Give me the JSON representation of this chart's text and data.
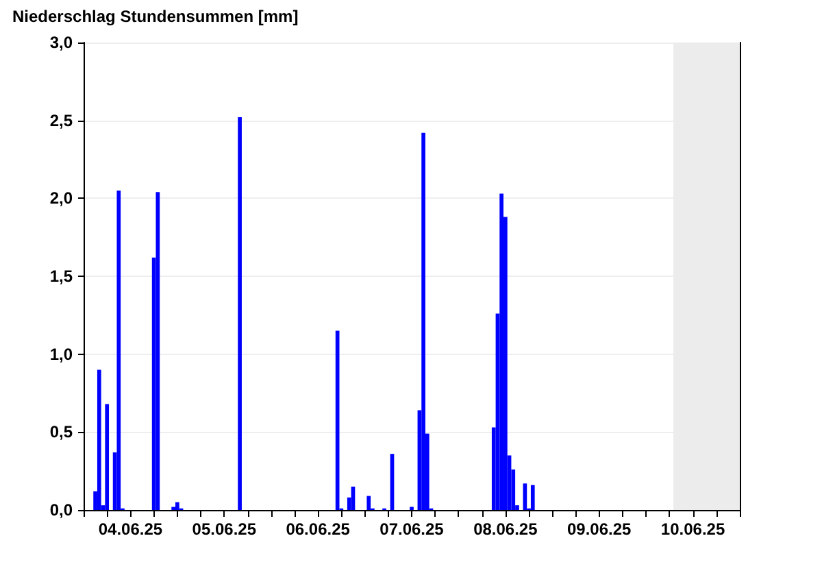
{
  "chart_data": {
    "type": "bar",
    "title": "Niederschlag Stundensummen [mm]",
    "x": [
      "--06-04T03:00",
      "--06-04T04:00",
      "--06-04T05:00",
      "--06-04T06:00",
      "--06-04T08:00",
      "--06-04T09:00",
      "--06-04T10:00",
      "--06-04T18:00",
      "--06-04T19:00",
      "--06-04T23:00",
      "--06-05T00:00",
      "--06-05T01:00",
      "--06-05T16:00",
      "--06-06T17:00",
      "--06-06T18:00",
      "--06-06T20:00",
      "--06-06T21:00",
      "--06-07T01:00",
      "--06-07T02:00",
      "--06-07T05:00",
      "--06-07T07:00",
      "--06-07T12:00",
      "--06-07T14:00",
      "--06-07T15:00",
      "--06-07T16:00",
      "--06-07T17:00",
      "--06-08T09:00",
      "--06-08T10:00",
      "--06-08T11:00",
      "--06-08T12:00",
      "--06-08T13:00",
      "--06-08T14:00",
      "--06-08T15:00",
      "--06-08T17:00",
      "--06-08T18:00",
      "--06-08T19:00"
    ],
    "values": [
      0.12,
      0.9,
      0.03,
      0.68,
      0.37,
      2.05,
      0.01,
      1.62,
      2.04,
      0.02,
      0.05,
      0.01,
      2.52,
      1.15,
      0.01,
      0.08,
      0.15,
      0.09,
      0.01,
      0.01,
      0.36,
      0.02,
      0.64,
      2.42,
      0.49,
      0.01,
      0.53,
      1.26,
      2.03,
      1.88,
      0.35,
      0.26,
      0.03,
      0.17,
      0.01,
      0.16
    ],
    "color": "#0000ff",
    "xlim": [
      "--06-04T00:00",
      "--06-11T00:00"
    ],
    "xticks": [
      {
        "value": "--06-04T00:00",
        "label": null
      },
      {
        "value": "--06-04T06:00",
        "label": null
      },
      {
        "value": "--06-04T12:00",
        "label": "04.06.25"
      },
      {
        "value": "--06-04T18:00",
        "label": null
      },
      {
        "value": "--06-05T00:00",
        "label": null
      },
      {
        "value": "--06-05T06:00",
        "label": null
      },
      {
        "value": "--06-05T12:00",
        "label": "05.06.25"
      },
      {
        "value": "--06-05T18:00",
        "label": null
      },
      {
        "value": "--06-06T00:00",
        "label": null
      },
      {
        "value": "--06-06T06:00",
        "label": null
      },
      {
        "value": "--06-06T12:00",
        "label": "06.06.25"
      },
      {
        "value": "--06-06T18:00",
        "label": null
      },
      {
        "value": "--06-07T00:00",
        "label": null
      },
      {
        "value": "--06-07T06:00",
        "label": null
      },
      {
        "value": "--06-07T12:00",
        "label": "07.06.25"
      },
      {
        "value": "--06-07T18:00",
        "label": null
      },
      {
        "value": "--06-08T00:00",
        "label": null
      },
      {
        "value": "--06-08T06:00",
        "label": null
      },
      {
        "value": "--06-08T12:00",
        "label": "08.06.25"
      },
      {
        "value": "--06-08T18:00",
        "label": null
      },
      {
        "value": "--06-09T00:00",
        "label": null
      },
      {
        "value": "--06-09T06:00",
        "label": null
      },
      {
        "value": "--06-09T12:00",
        "label": "09.06.25"
      },
      {
        "value": "--06-09T18:00",
        "label": null
      },
      {
        "value": "--06-10T00:00",
        "label": null
      },
      {
        "value": "--06-10T06:00",
        "label": null
      },
      {
        "value": "--06-10T12:00",
        "label": "10.06.25"
      },
      {
        "value": "--06-10T18:00",
        "label": null
      },
      {
        "value": "--06-11T00:00",
        "label": null
      }
    ],
    "ylim": [
      0,
      3
    ],
    "yticks": [
      {
        "value": 0,
        "label": "0,0"
      },
      {
        "value": 0.5,
        "label": "0,5"
      },
      {
        "value": 1,
        "label": "1,0"
      },
      {
        "value": 1.5,
        "label": "1,5"
      },
      {
        "value": 2,
        "label": "2,0"
      },
      {
        "value": 2.5,
        "label": "2,5"
      },
      {
        "value": 3,
        "label": "3,0"
      }
    ],
    "grid": "y",
    "bands": [
      {
        "axis": "x",
        "from": "--06-10T07:00",
        "to": "--06-11T00:00",
        "color": "#ececec"
      }
    ]
  }
}
